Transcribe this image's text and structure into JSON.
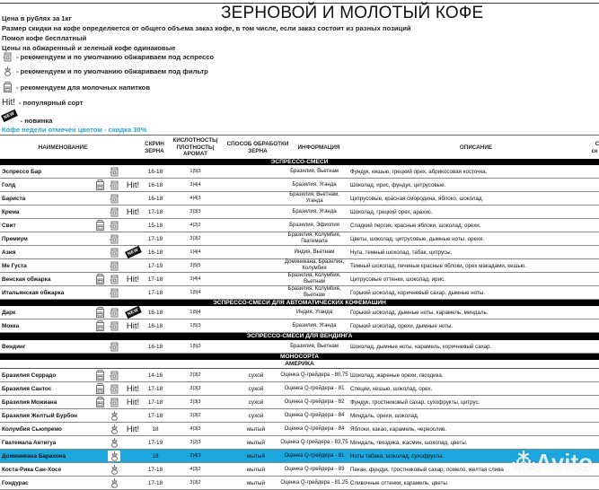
{
  "title": "ЗЕРНОВОЙ И МОЛОТЫЙ КОФЕ",
  "notes": [
    "Цена в рублях за 1кг",
    "Размер скидки на кофе определяется от общего объема заказ кофе, в том числе, если заказ состоит из разных позиций",
    "Помол кофе бесплатный",
    "Цены на обжаренный и зеленый кофе одинаковые"
  ],
  "legend": {
    "espresso": "- рекомендуем и по умолчанию обжариваем под эспрессо",
    "filter": "- рекомендуем и по умолчанию обжариваем под фильтр",
    "milk": "- рекомендуем для молочных напитков",
    "hit_badge": "Hit!",
    "hit": "- популярный сорт",
    "new_badge": "NEW",
    "new": "- новинка"
  },
  "week_note": "Кофе недели отмечен цветом - скидка 30%",
  "colors": {
    "highlight": "#1ba6dd",
    "week_note": "#29a6d6"
  },
  "header": {
    "name": "НАИМЕНОВАНИЕ",
    "screen": "СКРИН ЗЕРНА",
    "acidity": "КИСЛОТНОСТЬ| ПЛОТНОСТЬ| АРОМАТ",
    "process": "СПОСОБ ОБРАБОТКИ ЗЕРНА",
    "info": "ИНФОРМАЦИЯ",
    "desc": "ОПИСАНИЕ",
    "extra_top": "С",
    "extra_bottom": "ск"
  },
  "watermark": "Avito",
  "blocks": [
    {
      "type": "bar",
      "label": "ЭСПРЕССО-СМЕСИ",
      "h": 7
    },
    {
      "type": "row",
      "name": "Эспрессо Бар",
      "icons": [
        "",
        "espresso",
        ""
      ],
      "screen": "16-18",
      "acidity": "1|5|3",
      "process": "",
      "info": "Бразилия, Вьетнам",
      "desc": "Фундук, кешью, грецкий орех, абрикосовая косточка."
    },
    {
      "type": "row",
      "name": "Голд",
      "icons": [
        "milk",
        "espresso",
        "hit"
      ],
      "screen": "16-18",
      "acidity": "3|4|4",
      "process": "",
      "info": "Бразилия, Уганда",
      "desc": "Шоколад, ирис, фундук, цитрусовые."
    },
    {
      "type": "row",
      "name": "Бариста",
      "icons": [
        "",
        "espresso",
        ""
      ],
      "screen": "16-18",
      "acidity": "4|4|3",
      "process": "",
      "info": "Бразилия, Вьетнам, Уганда",
      "desc": "Цитрусовые, красная смородина, яблоко, шоколад."
    },
    {
      "type": "row",
      "name": "Крема",
      "icons": [
        "",
        "espresso",
        "hit"
      ],
      "screen": "17-18",
      "acidity": "3|3|3",
      "process": "",
      "info": "Бразилия, Уганда",
      "desc": "Шоколад, грецкий орех, арахис."
    },
    {
      "type": "row",
      "name": "Свит",
      "icons": [
        "milk",
        "espresso",
        ""
      ],
      "screen": "15-18",
      "acidity": "4|2|2",
      "process": "",
      "info": "Бразилия, Эфиопия",
      "desc": "Сладкий персик, красные яблоки, шоколад, орехи."
    },
    {
      "type": "row",
      "name": "Премиум",
      "icons": [
        "",
        "espresso",
        ""
      ],
      "screen": "17-19",
      "acidity": "3|3|2",
      "process": "",
      "info": "Бразилия, Колумбия, Гватемала",
      "desc": "Цветы, шоколад, цитрусовые, дымные ноты, орехи."
    },
    {
      "type": "row",
      "name": "Азия",
      "icons": [
        "",
        "espresso",
        "new"
      ],
      "screen": "16-18",
      "acidity": "1|4|4",
      "process": "",
      "info": "Индия, Вьетнам",
      "desc": "Нуга, темный шоколад, табак, цитрусы."
    },
    {
      "type": "row",
      "name": "Ме Густа",
      "icons": [
        "",
        "espresso",
        ""
      ],
      "screen": "17-19",
      "acidity": "3|5|5",
      "process": "",
      "info": "Доминикана, Бразилия, Колумбия",
      "desc": "Темный шоколад, печеные красные яблоки, орех макадами, кешью."
    },
    {
      "type": "row",
      "name": "Венская обжарка",
      "icons": [
        "milk",
        "espresso",
        "hit"
      ],
      "screen": "17-18",
      "acidity": "3|4|4",
      "process": "",
      "info": "Бразилия, Колумбия, Вьетнам",
      "desc": "Цитрусовые оттенки, шоколад, ирис."
    },
    {
      "type": "row",
      "name": "Итальянская обжарка",
      "icons": [
        "",
        "espresso",
        ""
      ],
      "screen": "17-18",
      "acidity": "1|5|4",
      "process": "",
      "info": "Бразилия, Колумбия, Вьетнам",
      "desc": "Горький шоколад, коричневый сахар, дымные ноты."
    },
    {
      "type": "bar",
      "label": "ЭСПРЕССО-СМЕСИ ДЛЯ АВТОМАТИЧЕСКИХ КОФЕМАШИН",
      "h": 7
    },
    {
      "type": "row",
      "name": "Дарк",
      "icons": [
        "milk",
        "espresso",
        "new"
      ],
      "screen": "16-18",
      "acidity": "1|5|4",
      "process": "",
      "info": "Индия, Уганда",
      "desc": "Горький шоколад, дымные ноты, карамель, миндаль."
    },
    {
      "type": "row",
      "name": "Мокка",
      "icons": [
        "milk",
        "espresso",
        "hit"
      ],
      "screen": "16-18",
      "acidity": "1|5|3",
      "process": "",
      "info": "Бразилия, Уганда",
      "desc": "Горький шоколад, орехи, дымные ноты."
    },
    {
      "type": "bar",
      "label": "ЭСПРЕССО-СМЕСИ ДЛЯ ВЕНДИНГА",
      "h": 8
    },
    {
      "type": "row",
      "name": "Вендинг",
      "icons": [
        "",
        "espresso",
        ""
      ],
      "screen": "16-18",
      "acidity": "1|5|3",
      "process": "",
      "info": "Бразилия, Вьетнам",
      "desc": "Шоколад, дымные ноты, карамель, коричневый сахар."
    },
    {
      "type": "bar",
      "label": "МОНОСОРТА",
      "h": 7
    },
    {
      "type": "sub",
      "label": "АМЕРИКА"
    },
    {
      "type": "row",
      "name": "Бразилия Серрадо",
      "icons": [
        "milk",
        "espresso",
        ""
      ],
      "screen": "14-16",
      "acidity": "2|3|2",
      "process": "сухой",
      "info": "Оценка Q-грейдера - 80,75",
      "desc": "Шоколад, жареные орехи, гвоздика."
    },
    {
      "type": "row",
      "name": "Бразилия Сантос",
      "icons": [
        "milk",
        "espresso",
        "hit"
      ],
      "screen": "17-18",
      "acidity": "3|3|3",
      "process": "сухой",
      "info": "Оценка Q-грейдера - 81",
      "desc": "Специи, кешью, шоколад, орех."
    },
    {
      "type": "row",
      "name": "Бразилия Можиана",
      "icons": [
        "milk",
        "espresso",
        "hit"
      ],
      "screen": "17-18",
      "acidity": "3|3|3",
      "process": "сухой",
      "info": "Оценка Q-грейдера - 82",
      "desc": "Фундук, тростниковый сахар, сухофрукты, цитрус."
    },
    {
      "type": "row",
      "name": "Бразилия Желтый Бурбон",
      "icons": [
        "",
        "filter",
        ""
      ],
      "screen": "17-18",
      "acidity": "3|3|2",
      "process": "сухой",
      "info": "Оценка Q-грейдера - 84",
      "desc": "Миндаль, орехи, шоколад."
    },
    {
      "type": "row",
      "name": "Колумбия Сьюпремо",
      "icons": [
        "",
        "filter",
        "hit"
      ],
      "screen": "18",
      "acidity": "4|3|3",
      "process": "мытый",
      "info": "Оценка Q-грейдера - 84",
      "desc": "Яблоки, какао, карамель, чернослив."
    },
    {
      "type": "row",
      "name": "Гватемала Антигуа",
      "icons": [
        "",
        "filter",
        ""
      ],
      "screen": "17-19",
      "acidity": "3|2|3",
      "process": "мытый",
      "info": "Оценка Q-грейдера - 83,75",
      "desc": "Миндаль, гвоздика, жасмин, шоколад, цветы."
    },
    {
      "type": "row",
      "name": "Доминикана Барахона",
      "icons": [
        "",
        "filter",
        ""
      ],
      "screen": "18",
      "acidity": "2|4|3",
      "process": "мытый",
      "info": "Оценка Q-грейдера - 81",
      "desc": "Ноты табака, шоколад, сухофрукты.",
      "highlight": true
    },
    {
      "type": "row",
      "name": "Коста-Рика Сан-Хосе",
      "icons": [
        "",
        "filter",
        ""
      ],
      "screen": "17-18",
      "acidity": "4|3|2",
      "process": "мытый",
      "info": "Оценка Q-грейдера - 83",
      "desc": "Пекан, фундук, тростниковый сахар, помело, желтая слива"
    },
    {
      "type": "row",
      "name": "Гондурас",
      "icons": [
        "",
        "filter",
        ""
      ],
      "screen": "17-18",
      "acidity": "3|3|2",
      "process": "мытый",
      "info": "Оценка Q-грейдера - 81,25",
      "desc": "Сливочные оттенки, карамель, цветы."
    }
  ]
}
